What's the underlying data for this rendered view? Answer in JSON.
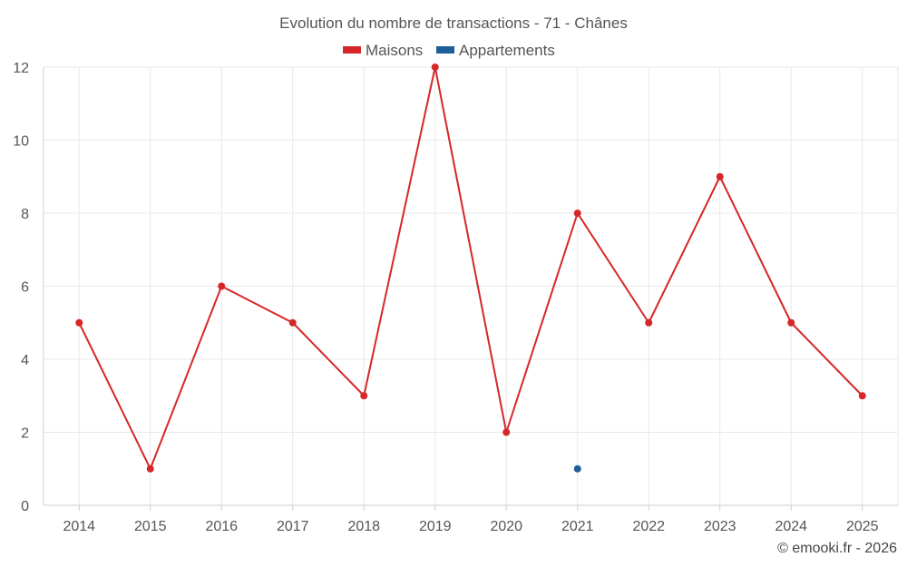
{
  "chart_data": {
    "type": "line",
    "title": "Evolution du nombre de transactions - 71 - Chânes",
    "categories": [
      "2014",
      "2015",
      "2016",
      "2017",
      "2018",
      "2019",
      "2020",
      "2021",
      "2022",
      "2023",
      "2024",
      "2025"
    ],
    "series": [
      {
        "name": "Maisons",
        "color": "#d62728",
        "values": [
          5,
          1,
          6,
          5,
          3,
          12,
          2,
          8,
          5,
          9,
          5,
          3
        ]
      },
      {
        "name": "Appartements",
        "color": "#1f5f99",
        "values": [
          null,
          null,
          null,
          null,
          null,
          null,
          null,
          1,
          null,
          null,
          null,
          null
        ]
      }
    ],
    "ylim": [
      0,
      12
    ],
    "yticks": [
      0,
      2,
      4,
      6,
      8,
      10,
      12
    ],
    "grid": true,
    "legend": "top-center",
    "credit": "© emooki.fr - 2026"
  }
}
